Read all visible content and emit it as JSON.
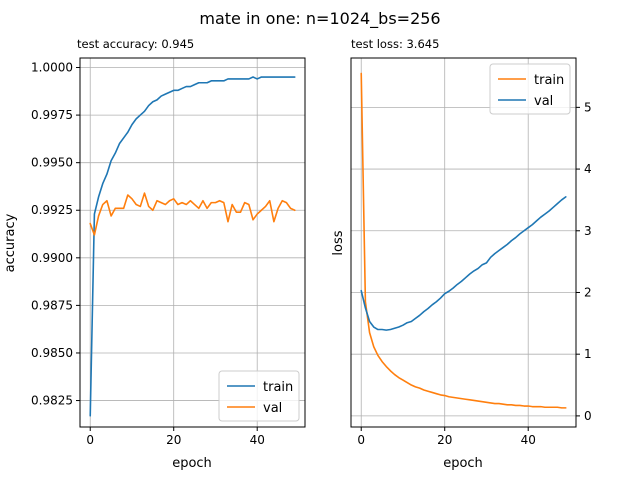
{
  "figure": {
    "title": "mate in one: n=1024_bs=256"
  },
  "chart_data": [
    {
      "type": "line",
      "title": "test accuracy: 0.945",
      "xlabel": "epoch",
      "ylabel": "accuracy",
      "xlim": [
        -2.45,
        51.45
      ],
      "ylim": [
        0.98111,
        1.0005
      ],
      "xticks": [
        0,
        20,
        40
      ],
      "xtick_labels": [
        "0",
        "20",
        "40"
      ],
      "yticks": [
        0.9825,
        0.985,
        0.9875,
        0.99,
        0.9925,
        0.995,
        0.9975,
        1.0
      ],
      "ytick_labels": [
        "0.9825",
        "0.9850",
        "0.9875",
        "0.9900",
        "0.9925",
        "0.9950",
        "0.9975",
        "1.0000"
      ],
      "yaxis_side": "left",
      "grid": true,
      "legend": {
        "position": "lower-right",
        "entries": [
          "train",
          "val"
        ]
      },
      "x": [
        0,
        1,
        2,
        3,
        4,
        5,
        6,
        7,
        8,
        9,
        10,
        11,
        12,
        13,
        14,
        15,
        16,
        17,
        18,
        19,
        20,
        21,
        22,
        23,
        24,
        25,
        26,
        27,
        28,
        29,
        30,
        31,
        32,
        33,
        34,
        35,
        36,
        37,
        38,
        39,
        40,
        41,
        42,
        43,
        44,
        45,
        46,
        47,
        48,
        49
      ],
      "series": [
        {
          "name": "train",
          "color": "#1f77b4",
          "values": [
            0.9817,
            0.9923,
            0.9932,
            0.9939,
            0.9944,
            0.9951,
            0.9955,
            0.996,
            0.9963,
            0.9966,
            0.997,
            0.9973,
            0.9975,
            0.9977,
            0.998,
            0.9982,
            0.9983,
            0.9985,
            0.9986,
            0.9987,
            0.9988,
            0.9988,
            0.9989,
            0.999,
            0.999,
            0.9991,
            0.9992,
            0.9992,
            0.9992,
            0.9993,
            0.9993,
            0.9993,
            0.9993,
            0.9994,
            0.9994,
            0.9994,
            0.9994,
            0.9994,
            0.9994,
            0.9995,
            0.9994,
            0.9995,
            0.9995,
            0.9995,
            0.9995,
            0.9995,
            0.9995,
            0.9995,
            0.9995,
            0.9995
          ]
        },
        {
          "name": "val",
          "color": "#ff7f0e",
          "values": [
            0.9918,
            0.9912,
            0.9922,
            0.9928,
            0.993,
            0.9922,
            0.9926,
            0.9926,
            0.9926,
            0.9933,
            0.9931,
            0.9928,
            0.9927,
            0.9934,
            0.9927,
            0.9925,
            0.993,
            0.9929,
            0.9928,
            0.993,
            0.9931,
            0.9928,
            0.9929,
            0.9928,
            0.993,
            0.9928,
            0.9926,
            0.993,
            0.9926,
            0.9929,
            0.9929,
            0.993,
            0.9929,
            0.9919,
            0.9928,
            0.9924,
            0.9924,
            0.9929,
            0.9928,
            0.992,
            0.9923,
            0.9925,
            0.9927,
            0.993,
            0.9919,
            0.9926,
            0.993,
            0.9929,
            0.9926,
            0.9925
          ]
        }
      ]
    },
    {
      "type": "line",
      "title": "test loss: 3.645",
      "xlabel": "epoch",
      "ylabel": "loss",
      "xlim": [
        -2.45,
        51.45
      ],
      "ylim": [
        -0.18,
        5.8
      ],
      "xticks": [
        0,
        20,
        40
      ],
      "xtick_labels": [
        "0",
        "20",
        "40"
      ],
      "yticks": [
        0,
        1,
        2,
        3,
        4,
        5
      ],
      "ytick_labels": [
        "0",
        "1",
        "2",
        "3",
        "4",
        "5"
      ],
      "yaxis_side": "right",
      "grid": true,
      "legend": {
        "position": "upper-right",
        "entries": [
          "train",
          "val"
        ]
      },
      "x": [
        0,
        1,
        2,
        3,
        4,
        5,
        6,
        7,
        8,
        9,
        10,
        11,
        12,
        13,
        14,
        15,
        16,
        17,
        18,
        19,
        20,
        21,
        22,
        23,
        24,
        25,
        26,
        27,
        28,
        29,
        30,
        31,
        32,
        33,
        34,
        35,
        36,
        37,
        38,
        39,
        40,
        41,
        42,
        43,
        44,
        45,
        46,
        47,
        48,
        49
      ],
      "series": [
        {
          "name": "train",
          "color": "#ff7f0e",
          "values": [
            5.55,
            1.85,
            1.35,
            1.12,
            0.98,
            0.88,
            0.8,
            0.73,
            0.67,
            0.62,
            0.58,
            0.54,
            0.5,
            0.47,
            0.45,
            0.42,
            0.4,
            0.38,
            0.36,
            0.34,
            0.33,
            0.31,
            0.3,
            0.29,
            0.28,
            0.27,
            0.26,
            0.25,
            0.24,
            0.23,
            0.22,
            0.21,
            0.2,
            0.2,
            0.19,
            0.18,
            0.18,
            0.17,
            0.17,
            0.16,
            0.16,
            0.15,
            0.15,
            0.15,
            0.14,
            0.14,
            0.14,
            0.14,
            0.13,
            0.13
          ]
        },
        {
          "name": "val",
          "color": "#1f77b4",
          "values": [
            2.03,
            1.75,
            1.53,
            1.44,
            1.4,
            1.4,
            1.39,
            1.4,
            1.42,
            1.44,
            1.47,
            1.51,
            1.53,
            1.58,
            1.63,
            1.69,
            1.74,
            1.8,
            1.85,
            1.91,
            1.98,
            2.02,
            2.07,
            2.13,
            2.18,
            2.24,
            2.3,
            2.35,
            2.39,
            2.45,
            2.48,
            2.57,
            2.63,
            2.68,
            2.73,
            2.78,
            2.84,
            2.89,
            2.95,
            3.0,
            3.05,
            3.1,
            3.16,
            3.22,
            3.27,
            3.32,
            3.38,
            3.44,
            3.5,
            3.55
          ]
        }
      ]
    }
  ]
}
